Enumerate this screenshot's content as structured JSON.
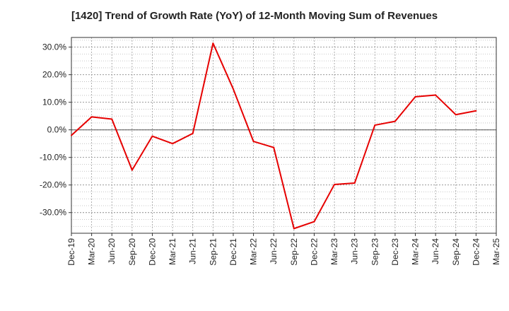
{
  "chart_data": {
    "type": "line",
    "title": "[1420]  Trend of Growth Rate (YoY) of 12-Month Moving Sum of Revenues",
    "xlabel": "",
    "ylabel": "",
    "x_ticks": [
      "Dec-19",
      "Mar-20",
      "Jun-20",
      "Sep-20",
      "Dec-20",
      "Mar-21",
      "Jun-21",
      "Sep-21",
      "Dec-21",
      "Mar-22",
      "Jun-22",
      "Sep-22",
      "Dec-22",
      "Mar-23",
      "Jun-23",
      "Sep-23",
      "Dec-23",
      "Mar-24",
      "Jun-24",
      "Sep-24",
      "Dec-24",
      "Mar-25"
    ],
    "y_ticks": [
      "30.0%",
      "20.0%",
      "10.0%",
      "0.0%",
      "-10.0%",
      "-20.0%",
      "-30.0%"
    ],
    "y_tick_values": [
      30,
      20,
      10,
      0,
      -10,
      -20,
      -30
    ],
    "ylim": [
      -37.5,
      33.5
    ],
    "grid": true,
    "zero_line": true,
    "series": [
      {
        "color": "#e60000",
        "x": [
          "Dec-19",
          "Mar-20",
          "Jun-20",
          "Sep-20",
          "Dec-20",
          "Mar-21",
          "Jun-21",
          "Sep-21",
          "Dec-21",
          "Mar-22",
          "Jun-22",
          "Sep-22",
          "Dec-22",
          "Mar-23",
          "Jun-23",
          "Sep-23",
          "Dec-23",
          "Mar-24",
          "Jun-24",
          "Sep-24",
          "Dec-24"
        ],
        "values": [
          -2.0,
          4.7,
          3.9,
          -14.6,
          -2.3,
          -5.0,
          -1.3,
          31.4,
          14.8,
          -4.2,
          -6.4,
          -35.8,
          -33.3,
          -19.8,
          -19.3,
          1.7,
          3.1,
          12.0,
          12.6,
          5.5,
          6.9
        ]
      }
    ]
  }
}
